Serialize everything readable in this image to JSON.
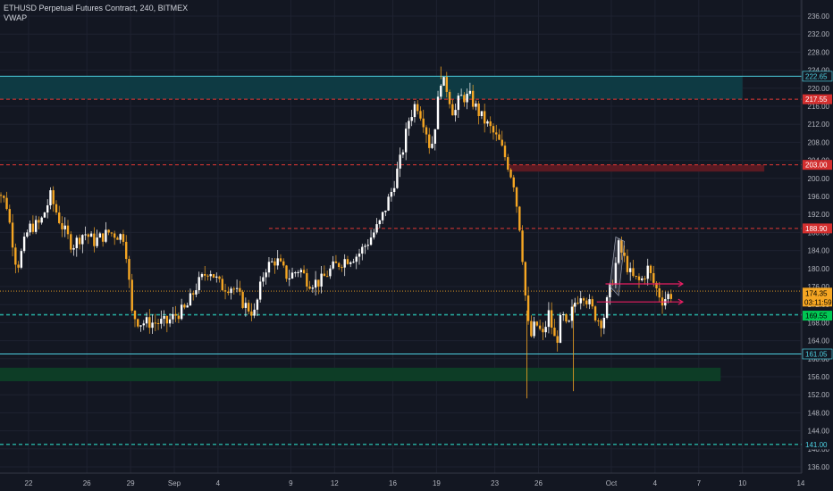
{
  "header": {
    "title": "ETHUSD Perpetual Futures Contract, 240, BITMEX",
    "indicator": "VWAP"
  },
  "colors": {
    "background": "#131722",
    "grid": "#1e2230",
    "candle": "#f5a623",
    "candle_down": "#ffffff",
    "zone_teal": "#0e3a43",
    "zone_green": "#0d3d26",
    "zone_red": "#5a1a22",
    "cyan_line": "#4dd0e1",
    "red_dashed": "#e53935",
    "green_dashed": "#26a69a",
    "vwap": "#f5a623",
    "magenta": "#e91e63"
  },
  "chart_data": {
    "type": "candlestick",
    "symbol": "ETHUSD",
    "interval": "240",
    "exchange": "BITMEX",
    "ylim": [
      134,
      238
    ],
    "y_ticks": [
      136,
      140,
      144,
      148,
      152,
      156,
      160,
      164,
      168,
      172,
      176,
      180,
      184,
      188,
      192,
      196,
      200,
      204,
      208,
      212,
      216,
      220,
      224,
      228,
      232,
      236
    ],
    "x_ticks": [
      {
        "label": "22",
        "day": 0
      },
      {
        "label": "26",
        "day": 4
      },
      {
        "label": "29",
        "day": 7
      },
      {
        "label": "Sep",
        "day": 10
      },
      {
        "label": "4",
        "day": 13
      },
      {
        "label": "9",
        "day": 18
      },
      {
        "label": "12",
        "day": 21
      },
      {
        "label": "16",
        "day": 25
      },
      {
        "label": "19",
        "day": 28
      },
      {
        "label": "23",
        "day": 32
      },
      {
        "label": "26",
        "day": 35
      },
      {
        "label": "Oct",
        "day": 40
      },
      {
        "label": "4",
        "day": 43
      },
      {
        "label": "7",
        "day": 46
      },
      {
        "label": "10",
        "day": 49
      },
      {
        "label": "14",
        "day": 53
      }
    ],
    "price_path": [
      [
        -2.5,
        200
      ],
      [
        -1.5,
        194
      ],
      [
        -0.8,
        180
      ],
      [
        0,
        189
      ],
      [
        0.8,
        190
      ],
      [
        1.5,
        196
      ],
      [
        2.2,
        190
      ],
      [
        3,
        185
      ],
      [
        3.8,
        188
      ],
      [
        4.5,
        186
      ],
      [
        5.5,
        188
      ],
      [
        6.6,
        187
      ],
      [
        7.1,
        170
      ],
      [
        7.6,
        168
      ],
      [
        8.5,
        168
      ],
      [
        9.5,
        168
      ],
      [
        10.2,
        170
      ],
      [
        10.8,
        171
      ],
      [
        11.5,
        176
      ],
      [
        12.4,
        180
      ],
      [
        13.2,
        176
      ],
      [
        14,
        176
      ],
      [
        14.8,
        172
      ],
      [
        15.5,
        170
      ],
      [
        16.2,
        180
      ],
      [
        17,
        182
      ],
      [
        17.8,
        178
      ],
      [
        18.6,
        180
      ],
      [
        19.2,
        177
      ],
      [
        20,
        177
      ],
      [
        20.8,
        180
      ],
      [
        21.7,
        182
      ],
      [
        22.6,
        183
      ],
      [
        23.3,
        186
      ],
      [
        24.1,
        190
      ],
      [
        24.9,
        197
      ],
      [
        25.6,
        205
      ],
      [
        26.1,
        213
      ],
      [
        26.6,
        217
      ],
      [
        27.2,
        212
      ],
      [
        27.6,
        206
      ],
      [
        27.9,
        212
      ],
      [
        28.3,
        222
      ],
      [
        28.7,
        220
      ],
      [
        29.2,
        214
      ],
      [
        29.6,
        218
      ],
      [
        30.3,
        218
      ],
      [
        31,
        214
      ],
      [
        31.7,
        211
      ],
      [
        32.3,
        208
      ],
      [
        32.8,
        204
      ],
      [
        33.3,
        199
      ],
      [
        33.8,
        187
      ],
      [
        34.1,
        174
      ],
      [
        34.4,
        164
      ],
      [
        34.8,
        168
      ],
      [
        35.3,
        165
      ],
      [
        35.7,
        170
      ],
      [
        36.2,
        163
      ],
      [
        36.6,
        170
      ],
      [
        37,
        166
      ],
      [
        37.4,
        172
      ],
      [
        38,
        175
      ],
      [
        38.5,
        172
      ],
      [
        39,
        169
      ],
      [
        39.4,
        168
      ],
      [
        39.8,
        174
      ],
      [
        40.2,
        179
      ],
      [
        40.5,
        185
      ],
      [
        40.9,
        182
      ],
      [
        41.4,
        178
      ],
      [
        42,
        177
      ],
      [
        42.5,
        180
      ],
      [
        43,
        176
      ],
      [
        43.5,
        173
      ],
      [
        43.9,
        174
      ],
      [
        44.2,
        174.35
      ]
    ],
    "horizontal_levels": [
      {
        "price": 222.65,
        "label": "222.65",
        "style": "solid-cyan"
      },
      {
        "price": 217.55,
        "label": "217.55",
        "style": "dashed-red"
      },
      {
        "price": 203.0,
        "label": "203.00",
        "style": "dashed-red"
      },
      {
        "price": 188.9,
        "label": "188.90",
        "style": "dashed-red"
      },
      {
        "price": 169.75,
        "label": "169.75",
        "style": "dashed-green"
      },
      {
        "price": 161.05,
        "label": "161.05",
        "style": "solid-cyan"
      },
      {
        "price": 141.0,
        "label": "141.00",
        "style": "dashed-green"
      }
    ],
    "zones": [
      {
        "from": 217.55,
        "to": 222.65,
        "start_day": -2.5,
        "end_day": 49,
        "color": "zone_teal"
      },
      {
        "from": 201.5,
        "to": 203.0,
        "start_day": 33,
        "end_day": 50.5,
        "color": "zone_red"
      },
      {
        "from": 155.0,
        "to": 158.0,
        "start_day": -2.5,
        "end_day": 47.5,
        "color": "zone_green"
      }
    ],
    "vwap_price": 175.0,
    "current_price": {
      "label": "174.35",
      "countdown": "03:11:59",
      "price": 174.35
    },
    "price_badges": [
      {
        "label": "169.55",
        "price": 169.55,
        "color": "#00c853",
        "text": "#000000"
      }
    ]
  }
}
